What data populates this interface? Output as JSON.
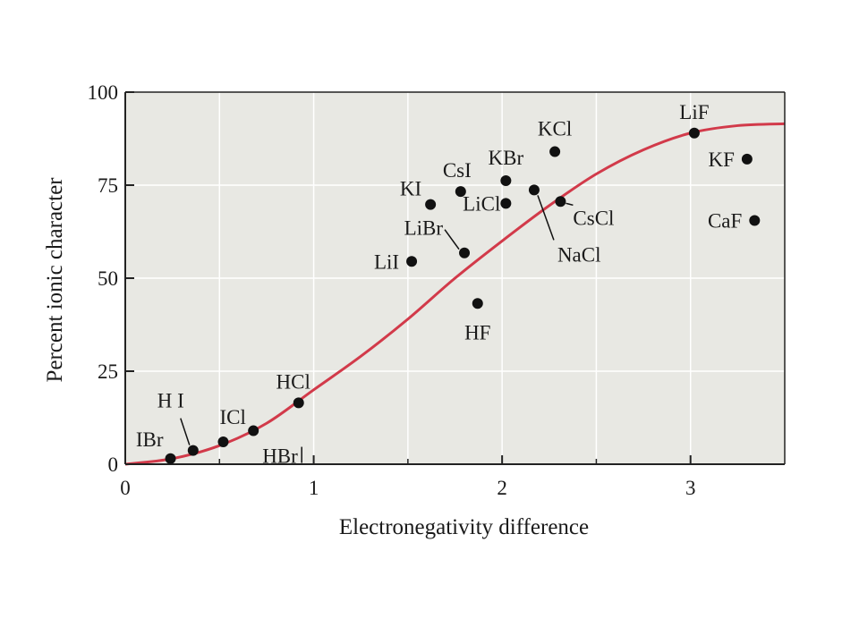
{
  "chart_data": {
    "type": "scatter",
    "title": "",
    "xlabel": "Electronegativity difference",
    "ylabel": "Percent ionic character",
    "xlim": [
      0,
      3.5
    ],
    "ylim": [
      0,
      100
    ],
    "x_ticks": [
      0,
      1,
      2,
      3
    ],
    "y_ticks": [
      0,
      25,
      50,
      75,
      100
    ],
    "grid": true,
    "colors": {
      "background": "#e8e8e3",
      "curve": "#d23a4a",
      "points": "#111111",
      "grid": "#ffffff"
    },
    "points": [
      {
        "label": "IBr",
        "x": 0.24,
        "y": 1.5
      },
      {
        "label": "H I",
        "x": 0.36,
        "y": 3.7
      },
      {
        "label": "ICl",
        "x": 0.52,
        "y": 6
      },
      {
        "label": "HBr",
        "x": 0.68,
        "y": 9
      },
      {
        "label": "HCl",
        "x": 0.92,
        "y": 16.5
      },
      {
        "label": "LiI",
        "x": 1.52,
        "y": 54.5
      },
      {
        "label": "KI",
        "x": 1.62,
        "y": 69.8
      },
      {
        "label": "CsI",
        "x": 1.78,
        "y": 73.3
      },
      {
        "label": "LiBr",
        "x": 1.8,
        "y": 56.8
      },
      {
        "label": "HF",
        "x": 1.87,
        "y": 43.2
      },
      {
        "label": "KBr",
        "x": 2.02,
        "y": 76.2
      },
      {
        "label": "LiCl",
        "x": 2.02,
        "y": 70.1
      },
      {
        "label": "NaCl",
        "x": 2.17,
        "y": 73.7
      },
      {
        "label": "KCl",
        "x": 2.28,
        "y": 84
      },
      {
        "label": "CsCl",
        "x": 2.31,
        "y": 70.6
      },
      {
        "label": "LiF",
        "x": 3.02,
        "y": 89
      },
      {
        "label": "KF",
        "x": 3.3,
        "y": 82
      },
      {
        "label": "CaF",
        "x": 3.34,
        "y": 65.5
      }
    ],
    "curve": {
      "name": "",
      "x": [
        0,
        0.25,
        0.5,
        0.75,
        1.0,
        1.25,
        1.5,
        1.75,
        2.0,
        2.25,
        2.5,
        2.75,
        3.0,
        3.25,
        3.5
      ],
      "y": [
        0,
        1.5,
        5,
        11,
        20,
        29,
        39,
        50,
        60,
        69.5,
        78,
        84.5,
        89,
        91,
        91.5
      ]
    }
  }
}
